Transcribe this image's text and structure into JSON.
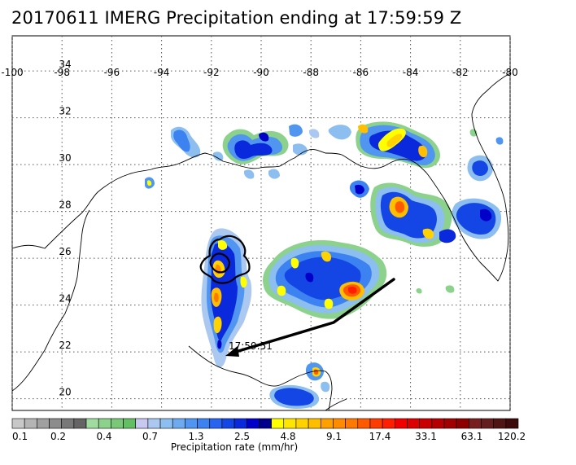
{
  "title": "20170611 IMERG Precipitation ending at 17:59:59 Z",
  "map": {
    "lon_range": [
      -100,
      -80
    ],
    "lat_range": [
      19.5,
      35.5
    ],
    "lon_ticks": [
      "-100",
      "-98",
      "-96",
      "-94",
      "-92",
      "-90",
      "-88",
      "-86",
      "-84",
      "-82",
      "-80"
    ],
    "lat_ticks": [
      "34",
      "32",
      "30",
      "28",
      "26",
      "24",
      "22",
      "20"
    ],
    "grid": true,
    "track_time_label": "17:59:51"
  },
  "colorbar": {
    "title": "Precipitation rate (mm/hr)",
    "labels": [
      "0.1",
      "0.2",
      "0.4",
      "0.7",
      "1.3",
      "2.5",
      "4.8",
      "9.1",
      "17.4",
      "33.1",
      "63.1",
      "120.2"
    ],
    "colors": [
      "#c8c8c8",
      "#b4b4b4",
      "#a0a0a0",
      "#8c8c8c",
      "#787878",
      "#646464",
      "#a0dca0",
      "#8cd28c",
      "#78c878",
      "#64be64",
      "#c8c8f0",
      "#aac8f0",
      "#8cbef0",
      "#6eaaf0",
      "#5096f0",
      "#3c82f0",
      "#2864f0",
      "#1446e6",
      "#0a28dc",
      "#0000c8",
      "#00008c",
      "#ffff00",
      "#ffe600",
      "#ffd200",
      "#ffbe00",
      "#ffa000",
      "#ff8c00",
      "#ff7800",
      "#ff5a00",
      "#ff3c00",
      "#ff1e00",
      "#f00000",
      "#dc0000",
      "#c80000",
      "#b40000",
      "#a00000",
      "#8c0000",
      "#781e1e",
      "#641e1e",
      "#501414",
      "#3c0a0a"
    ]
  }
}
